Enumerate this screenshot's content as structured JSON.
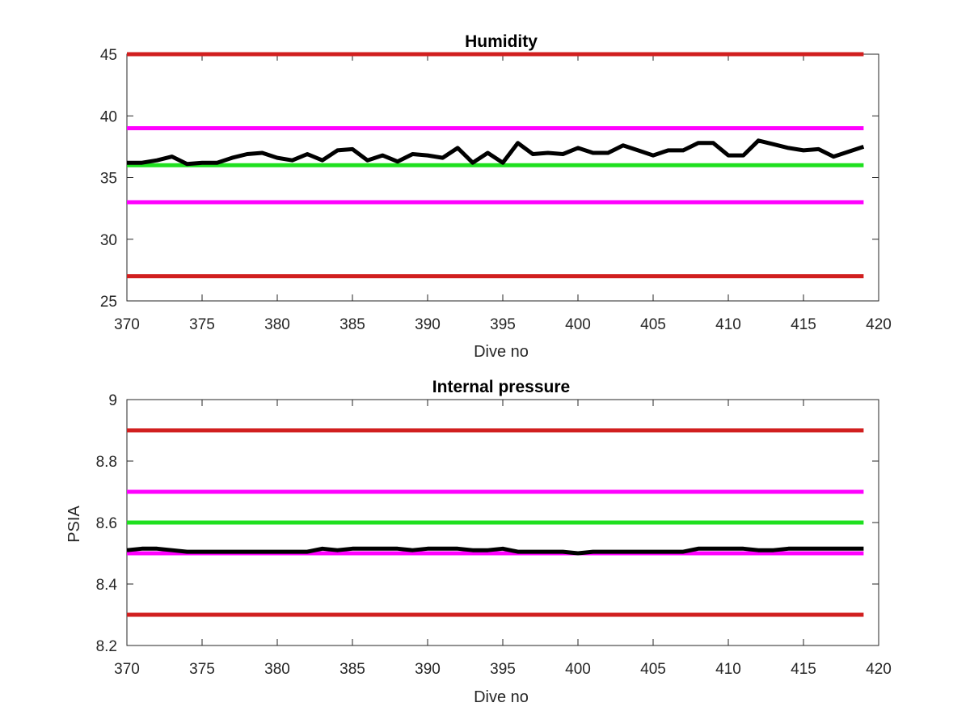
{
  "chart_data": [
    {
      "type": "line",
      "title": "Humidity",
      "xlabel": "Dive no",
      "ylabel": "",
      "xlim": [
        370,
        420
      ],
      "ylim": [
        25,
        45
      ],
      "xticks": [
        "370",
        "375",
        "380",
        "385",
        "390",
        "395",
        "400",
        "405",
        "410",
        "415",
        "420"
      ],
      "yticks": [
        "25",
        "30",
        "35",
        "40",
        "45"
      ],
      "grid": false,
      "series": [
        {
          "color": "#000000",
          "x": [
            370,
            371,
            372,
            373,
            374,
            375,
            376,
            377,
            378,
            379,
            380,
            381,
            382,
            383,
            384,
            385,
            386,
            387,
            388,
            389,
            390,
            391,
            392,
            393,
            394,
            395,
            396,
            397,
            398,
            399,
            400,
            401,
            402,
            403,
            404,
            405,
            406,
            407,
            408,
            409,
            410,
            411,
            412,
            413,
            414,
            415,
            416,
            417,
            418,
            419
          ],
          "values": [
            36.2,
            36.2,
            36.4,
            36.7,
            36.1,
            36.2,
            36.2,
            36.6,
            36.9,
            37.0,
            36.6,
            36.4,
            36.9,
            36.4,
            37.2,
            37.3,
            36.4,
            36.8,
            36.3,
            36.9,
            36.8,
            36.6,
            37.4,
            36.2,
            37.0,
            36.2,
            37.8,
            36.9,
            37.0,
            36.9,
            37.4,
            37.0,
            37.0,
            37.6,
            37.2,
            36.8,
            37.2,
            37.2,
            37.8,
            37.8,
            36.8,
            36.8,
            38.0,
            37.7,
            37.4,
            37.2,
            37.3,
            36.7,
            37.1,
            37.5
          ]
        }
      ],
      "reference_lines": [
        {
          "y": 45,
          "color": "#d11f1f"
        },
        {
          "y": 39,
          "color": "#ff00ff"
        },
        {
          "y": 36,
          "color": "#1fe01f"
        },
        {
          "y": 33,
          "color": "#ff00ff"
        },
        {
          "y": 27,
          "color": "#d11f1f"
        }
      ],
      "reference_x_range": [
        370,
        419
      ]
    },
    {
      "type": "line",
      "title": "Internal pressure",
      "xlabel": "Dive no",
      "ylabel": "PSIA",
      "xlim": [
        370,
        420
      ],
      "ylim": [
        8.2,
        9.0
      ],
      "xticks": [
        "370",
        "375",
        "380",
        "385",
        "390",
        "395",
        "400",
        "405",
        "410",
        "415",
        "420"
      ],
      "yticks": [
        "8.2",
        "8.4",
        "8.6",
        "8.8",
        "9"
      ],
      "grid": false,
      "series": [
        {
          "color": "#000000",
          "x": [
            370,
            371,
            372,
            373,
            374,
            375,
            376,
            377,
            378,
            379,
            380,
            381,
            382,
            383,
            384,
            385,
            386,
            387,
            388,
            389,
            390,
            391,
            392,
            393,
            394,
            395,
            396,
            397,
            398,
            399,
            400,
            401,
            402,
            403,
            404,
            405,
            406,
            407,
            408,
            409,
            410,
            411,
            412,
            413,
            414,
            415,
            416,
            417,
            418,
            419
          ],
          "values": [
            8.51,
            8.515,
            8.515,
            8.51,
            8.505,
            8.505,
            8.505,
            8.505,
            8.505,
            8.505,
            8.505,
            8.505,
            8.505,
            8.515,
            8.51,
            8.515,
            8.515,
            8.515,
            8.515,
            8.51,
            8.515,
            8.515,
            8.515,
            8.51,
            8.51,
            8.515,
            8.505,
            8.505,
            8.505,
            8.505,
            8.5,
            8.505,
            8.505,
            8.505,
            8.505,
            8.505,
            8.505,
            8.505,
            8.515,
            8.515,
            8.515,
            8.515,
            8.51,
            8.51,
            8.515,
            8.515,
            8.515,
            8.515,
            8.515,
            8.515
          ]
        }
      ],
      "reference_lines": [
        {
          "y": 8.9,
          "color": "#d11f1f"
        },
        {
          "y": 8.7,
          "color": "#ff00ff"
        },
        {
          "y": 8.6,
          "color": "#1fe01f"
        },
        {
          "y": 8.5,
          "color": "#ff00ff"
        },
        {
          "y": 8.3,
          "color": "#d11f1f"
        }
      ],
      "reference_x_range": [
        370,
        419
      ]
    }
  ]
}
